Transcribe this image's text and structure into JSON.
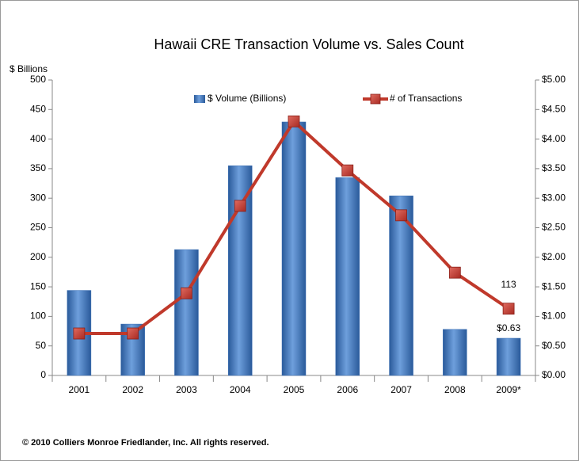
{
  "chart_data": {
    "type": "bar-line",
    "title": "Hawaii CRE Transaction Volume vs. Sales Count",
    "ylabel": "$ Billions",
    "categories": [
      "2001",
      "2002",
      "2003",
      "2004",
      "2005",
      "2006",
      "2007",
      "2008",
      "2009*"
    ],
    "series": [
      {
        "name": "$ Volume (Billions)",
        "type": "bar",
        "axis": "y2",
        "color": "#3a6fb5",
        "values": [
          1.44,
          0.87,
          2.13,
          3.55,
          4.29,
          3.35,
          3.04,
          0.78,
          0.63
        ],
        "value_labels": [
          null,
          null,
          null,
          null,
          null,
          null,
          null,
          null,
          "$0.63"
        ]
      },
      {
        "name": "# of Transactions",
        "type": "line",
        "color": "#c0392b",
        "values": [
          71,
          71,
          139,
          287,
          430,
          347,
          271,
          174,
          113
        ],
        "value_labels": [
          null,
          null,
          null,
          null,
          null,
          null,
          null,
          null,
          "113"
        ]
      }
    ],
    "ylim": [
      0,
      500
    ],
    "yticks": [
      0,
      50,
      100,
      150,
      200,
      250,
      300,
      350,
      400,
      450,
      500
    ],
    "y2lim": [
      0,
      5
    ],
    "y2ticks": [
      {
        "value": 0,
        "label": "$0.00"
      },
      {
        "value": 0.5,
        "label": "$0.50"
      },
      {
        "value": 1,
        "label": "$1.00"
      },
      {
        "value": 1.5,
        "label": "$1.50"
      },
      {
        "value": 2,
        "label": "$2.00"
      },
      {
        "value": 2.5,
        "label": "$2.50"
      },
      {
        "value": 3,
        "label": "$3.00"
      },
      {
        "value": 3.5,
        "label": "$3.50"
      },
      {
        "value": 4,
        "label": "$4.00"
      },
      {
        "value": 4.5,
        "label": "$4.50"
      },
      {
        "value": 5,
        "label": "$5.00"
      }
    ],
    "footer": "© 2010 Colliers Monroe Friedlander, Inc. All rights reserved."
  }
}
